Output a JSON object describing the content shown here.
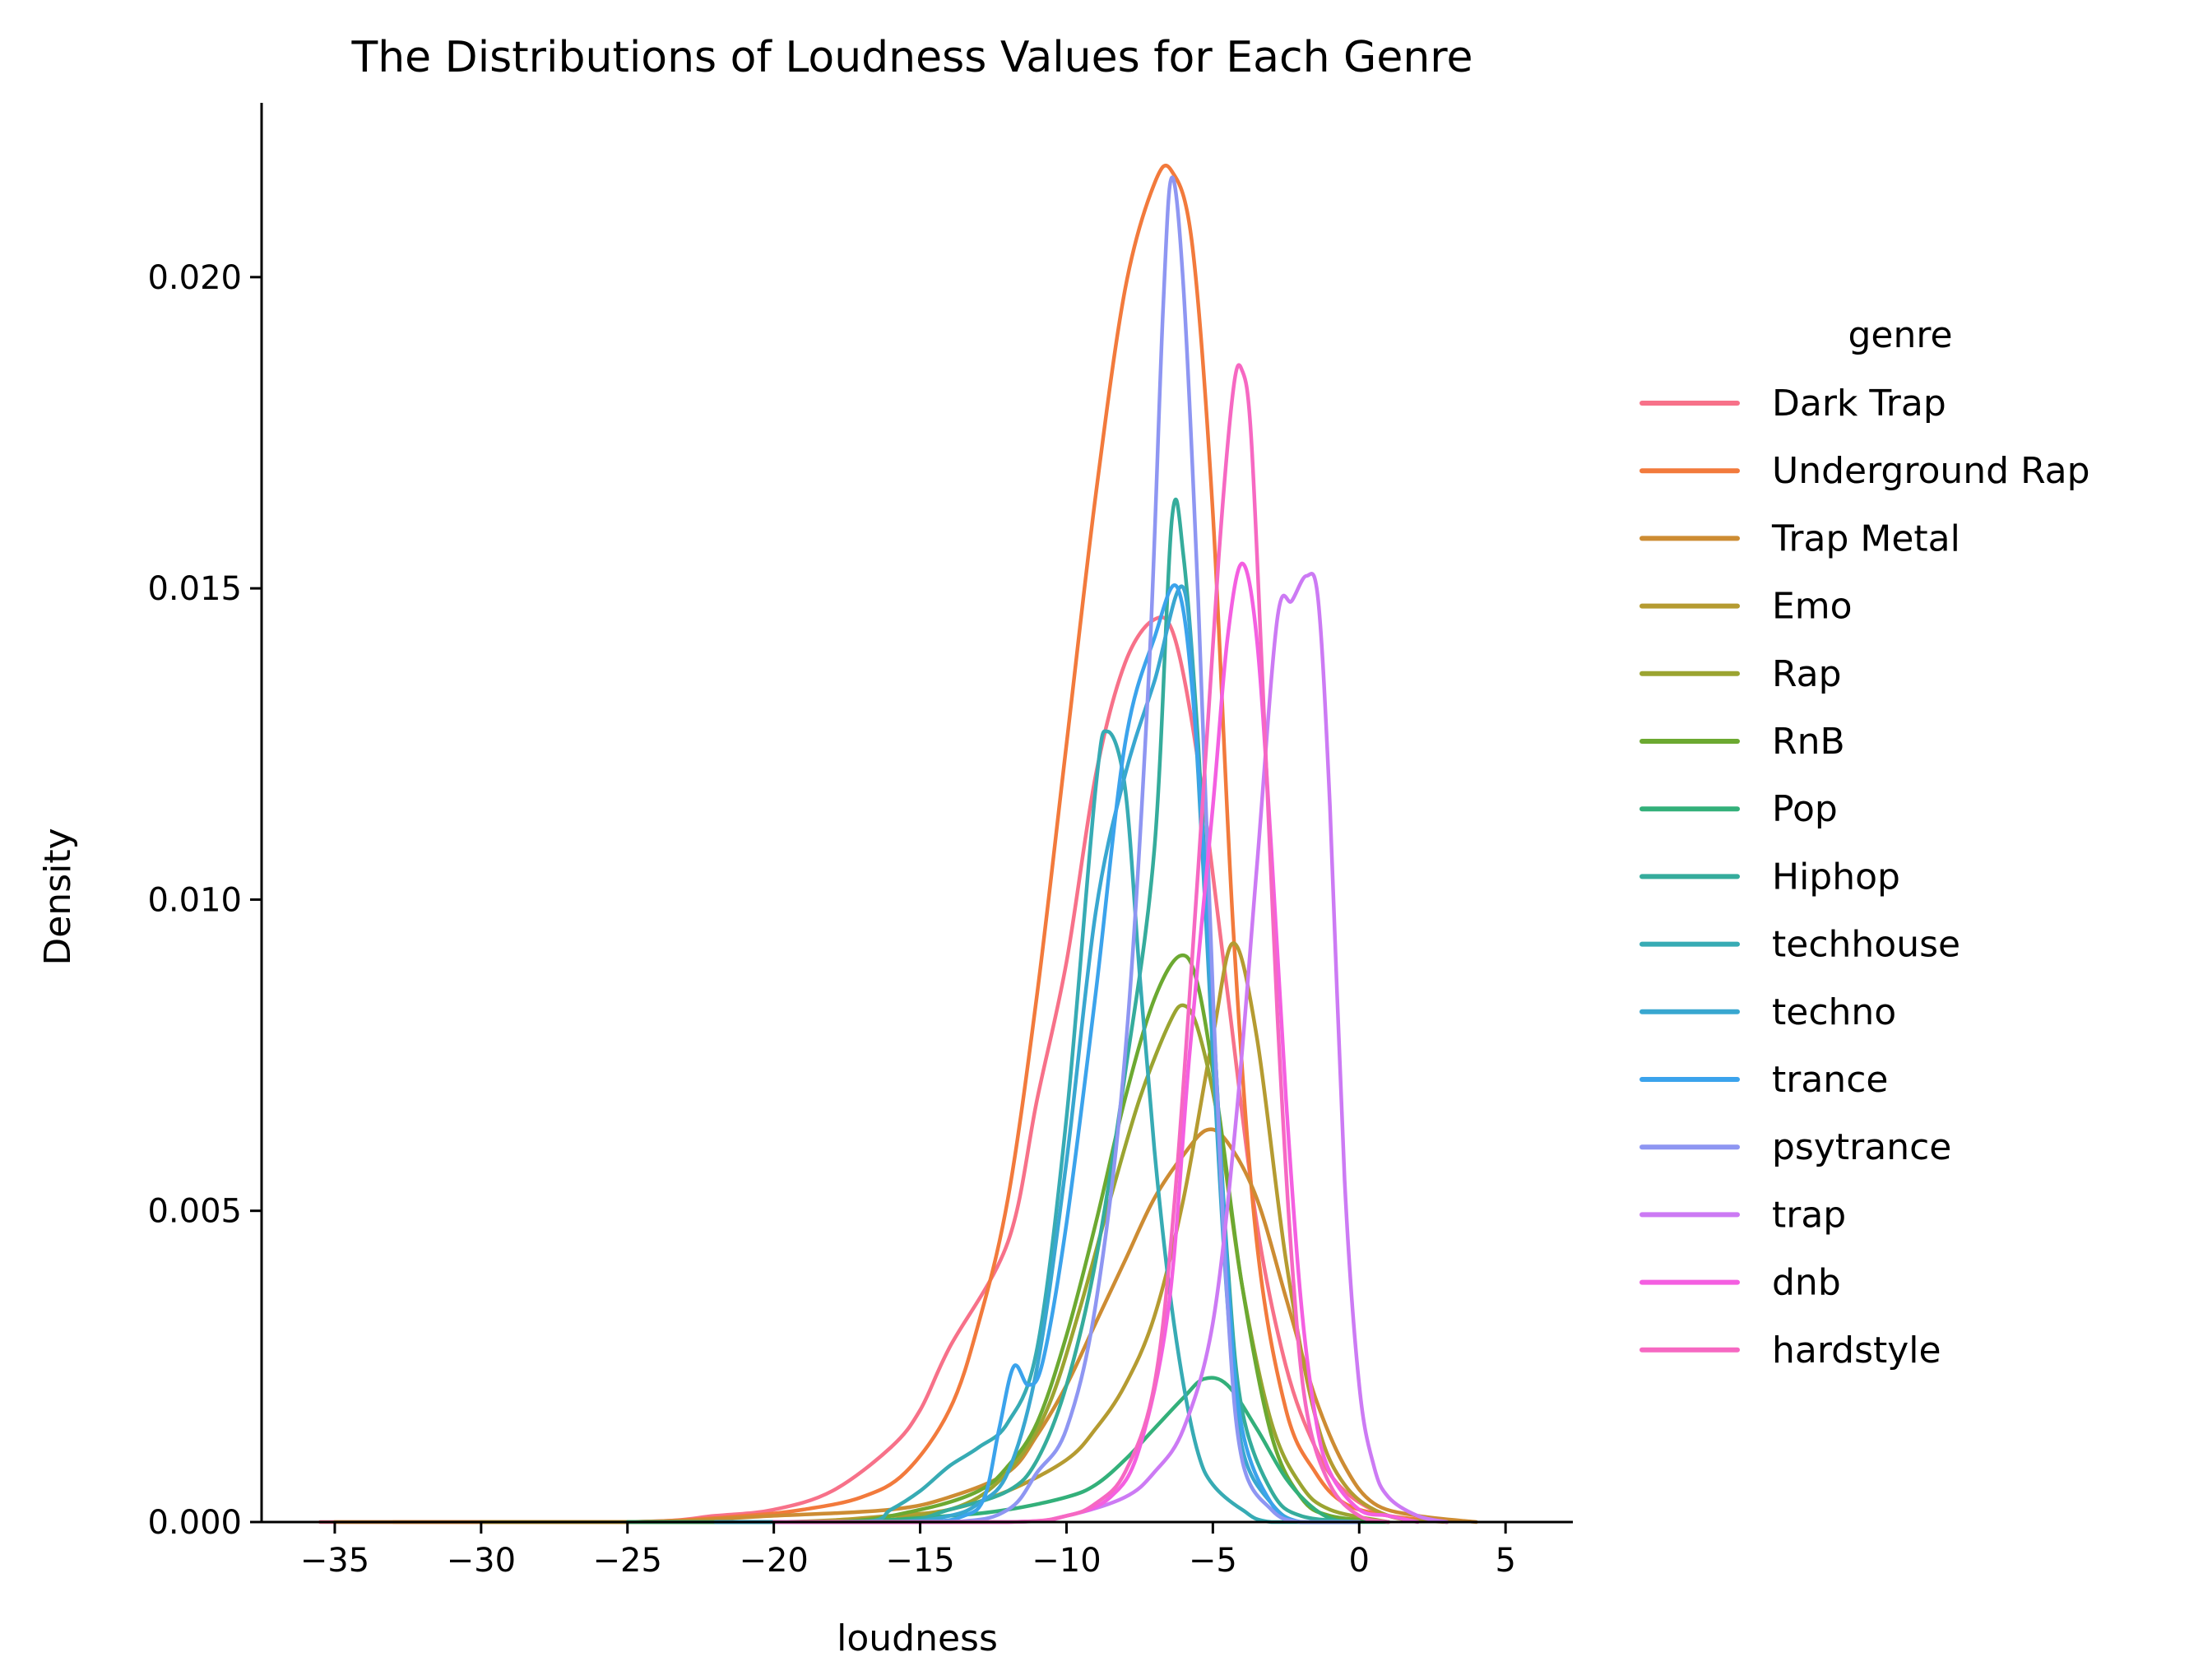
{
  "chart_data": {
    "type": "line",
    "title": "The Distributions of Loudness Values for Each Genre",
    "xlabel": "loudness",
    "ylabel": "Density",
    "xlim": [
      -37.5,
      7.3
    ],
    "ylim": [
      0,
      0.0228
    ],
    "xticks": [
      -35,
      -30,
      -25,
      -20,
      -15,
      -10,
      -5,
      0,
      5
    ],
    "xtick_labels": [
      "−35",
      "−30",
      "−25",
      "−20",
      "−15",
      "−10",
      "−5",
      "0",
      "5"
    ],
    "yticks": [
      0,
      0.005,
      0.01,
      0.015,
      0.02
    ],
    "ytick_labels": [
      "0.000",
      "0.005",
      "0.010",
      "0.015",
      "0.020"
    ],
    "grid": false,
    "legend": {
      "title": "genre",
      "position": "right"
    },
    "series": [
      {
        "name": "Dark Trap",
        "color": "#f77189",
        "points": [
          [
            -35.5,
            0
          ],
          [
            -25,
            0
          ],
          [
            -22,
            0.0001
          ],
          [
            -20,
            0.0002
          ],
          [
            -18,
            0.0005
          ],
          [
            -16,
            0.0012
          ],
          [
            -15,
            0.0018
          ],
          [
            -14,
            0.0028
          ],
          [
            -12,
            0.0045
          ],
          [
            -11,
            0.0068
          ],
          [
            -10,
            0.009
          ],
          [
            -9,
            0.012
          ],
          [
            -8,
            0.0138
          ],
          [
            -7,
            0.0145
          ],
          [
            -6.3,
            0.0142
          ],
          [
            -5.5,
            0.0122
          ],
          [
            -4.5,
            0.0085
          ],
          [
            -3.5,
            0.0048
          ],
          [
            -2.5,
            0.0025
          ],
          [
            -1.5,
            0.0012
          ],
          [
            -0.5,
            0.0005
          ],
          [
            1,
            0.0001
          ],
          [
            3,
            0
          ]
        ]
      },
      {
        "name": "Underground Rap",
        "color": "#f27a3c",
        "points": [
          [
            -33,
            0
          ],
          [
            -25,
            0
          ],
          [
            -21,
            0.0001
          ],
          [
            -19,
            0.0002
          ],
          [
            -17,
            0.0004
          ],
          [
            -15.5,
            0.0008
          ],
          [
            -14,
            0.0018
          ],
          [
            -13,
            0.0032
          ],
          [
            -12,
            0.0052
          ],
          [
            -11,
            0.0085
          ],
          [
            -10,
            0.0125
          ],
          [
            -9,
            0.0165
          ],
          [
            -8,
            0.0198
          ],
          [
            -7,
            0.0215
          ],
          [
            -6.4,
            0.0217
          ],
          [
            -5.7,
            0.0205
          ],
          [
            -5,
            0.0162
          ],
          [
            -4.3,
            0.0095
          ],
          [
            -3.5,
            0.0045
          ],
          [
            -2.5,
            0.0018
          ],
          [
            -1.5,
            0.0008
          ],
          [
            -0.5,
            0.0003
          ],
          [
            1,
            0.0001
          ],
          [
            3,
            0
          ]
        ]
      },
      {
        "name": "Trap Metal",
        "color": "#cd8c33",
        "points": [
          [
            -35,
            0
          ],
          [
            -25,
            0
          ],
          [
            -20,
            0.0001
          ],
          [
            -16,
            0.0002
          ],
          [
            -14,
            0.0004
          ],
          [
            -12,
            0.0008
          ],
          [
            -11,
            0.0014
          ],
          [
            -10,
            0.0022
          ],
          [
            -9,
            0.0032
          ],
          [
            -8,
            0.0042
          ],
          [
            -7,
            0.0052
          ],
          [
            -6,
            0.0059
          ],
          [
            -5.2,
            0.0063
          ],
          [
            -4.5,
            0.0061
          ],
          [
            -3.5,
            0.0052
          ],
          [
            -2.5,
            0.0036
          ],
          [
            -1.5,
            0.002
          ],
          [
            -0.5,
            0.0009
          ],
          [
            0.5,
            0.0003
          ],
          [
            2,
            0.0001
          ],
          [
            4,
            0
          ]
        ]
      },
      {
        "name": "Emo",
        "color": "#b59b31",
        "points": [
          [
            -30,
            0
          ],
          [
            -20,
            0
          ],
          [
            -16,
            0.0001
          ],
          [
            -14,
            0.0002
          ],
          [
            -12,
            0.0005
          ],
          [
            -10,
            0.001
          ],
          [
            -9,
            0.0015
          ],
          [
            -8,
            0.0022
          ],
          [
            -7,
            0.0033
          ],
          [
            -6,
            0.0052
          ],
          [
            -5,
            0.0078
          ],
          [
            -4.3,
            0.0093
          ],
          [
            -3.5,
            0.0078
          ],
          [
            -2.5,
            0.0042
          ],
          [
            -1.5,
            0.0017
          ],
          [
            -0.5,
            0.0006
          ],
          [
            1,
            0.0001
          ],
          [
            3,
            0
          ]
        ]
      },
      {
        "name": "Rap",
        "color": "#9ba431",
        "points": [
          [
            -25,
            0
          ],
          [
            -18,
            0
          ],
          [
            -15,
            0.0001
          ],
          [
            -13,
            0.0004
          ],
          [
            -11.5,
            0.0011
          ],
          [
            -10.5,
            0.002
          ],
          [
            -9.5,
            0.0035
          ],
          [
            -8.5,
            0.0052
          ],
          [
            -7.5,
            0.0068
          ],
          [
            -6.5,
            0.008
          ],
          [
            -6,
            0.0083
          ],
          [
            -5.5,
            0.0079
          ],
          [
            -4.8,
            0.0064
          ],
          [
            -4,
            0.0038
          ],
          [
            -3,
            0.0016
          ],
          [
            -2,
            0.0006
          ],
          [
            -1,
            0.0002
          ],
          [
            1,
            0
          ]
        ]
      },
      {
        "name": "RnB",
        "color": "#6ca931",
        "points": [
          [
            -25,
            0
          ],
          [
            -18,
            0
          ],
          [
            -15,
            0.0002
          ],
          [
            -13,
            0.0005
          ],
          [
            -12,
            0.0009
          ],
          [
            -11,
            0.0016
          ],
          [
            -10,
            0.003
          ],
          [
            -9,
            0.0048
          ],
          [
            -8,
            0.0068
          ],
          [
            -7,
            0.0084
          ],
          [
            -6.1,
            0.0091
          ],
          [
            -5.5,
            0.0086
          ],
          [
            -4.8,
            0.0066
          ],
          [
            -4,
            0.0038
          ],
          [
            -3,
            0.0014
          ],
          [
            -2,
            0.0004
          ],
          [
            -1,
            0.0001
          ],
          [
            1,
            0
          ]
        ]
      },
      {
        "name": "Pop",
        "color": "#33b07a",
        "points": [
          [
            -25,
            0
          ],
          [
            -18,
            0
          ],
          [
            -14,
            0.0001
          ],
          [
            -12,
            0.0002
          ],
          [
            -10,
            0.0004
          ],
          [
            -9,
            0.0006
          ],
          [
            -8,
            0.001
          ],
          [
            -7,
            0.0015
          ],
          [
            -6,
            0.002
          ],
          [
            -5.3,
            0.0023
          ],
          [
            -4.5,
            0.0022
          ],
          [
            -3.5,
            0.0015
          ],
          [
            -2.5,
            0.0007
          ],
          [
            -1.5,
            0.0002
          ],
          [
            -0.5,
            0
          ],
          [
            1,
            0
          ]
        ]
      },
      {
        "name": "Hiphop",
        "color": "#35ac9c",
        "points": [
          [
            -22,
            0
          ],
          [
            -16,
            0
          ],
          [
            -14,
            0.0002
          ],
          [
            -12,
            0.0005
          ],
          [
            -11,
            0.001
          ],
          [
            -10,
            0.0022
          ],
          [
            -9,
            0.0042
          ],
          [
            -8,
            0.0072
          ],
          [
            -7,
            0.0108
          ],
          [
            -6.4,
            0.0161
          ],
          [
            -6,
            0.0155
          ],
          [
            -5.5,
            0.0125
          ],
          [
            -5,
            0.0082
          ],
          [
            -4.5,
            0.0042
          ],
          [
            -4,
            0.0018
          ],
          [
            -3,
            0.0005
          ],
          [
            -2,
            0.0001
          ],
          [
            0,
            0
          ]
        ]
      },
      {
        "name": "techhouse",
        "color": "#37abb4",
        "points": [
          [
            -22,
            0
          ],
          [
            -17,
            0
          ],
          [
            -16,
            0.0002
          ],
          [
            -15,
            0.0005
          ],
          [
            -14,
            0.0009
          ],
          [
            -13,
            0.0012
          ],
          [
            -12,
            0.0016
          ],
          [
            -11,
            0.0028
          ],
          [
            -10,
            0.0065
          ],
          [
            -9,
            0.0118
          ],
          [
            -8.6,
            0.0127
          ],
          [
            -8,
            0.0118
          ],
          [
            -7.5,
            0.0088
          ],
          [
            -7,
            0.006
          ],
          [
            -6.5,
            0.0038
          ],
          [
            -6,
            0.0022
          ],
          [
            -5.5,
            0.0011
          ],
          [
            -5,
            0.0006
          ],
          [
            -4,
            0.0002
          ],
          [
            -3,
            0
          ],
          [
            0,
            0
          ]
        ]
      },
      {
        "name": "techno",
        "color": "#39a7d0",
        "points": [
          [
            -22,
            0
          ],
          [
            -16,
            0
          ],
          [
            -14,
            0.0001
          ],
          [
            -13,
            0.0003
          ],
          [
            -12,
            0.0008
          ],
          [
            -11,
            0.0025
          ],
          [
            -10,
            0.0058
          ],
          [
            -9,
            0.0098
          ],
          [
            -8,
            0.012
          ],
          [
            -7,
            0.0135
          ],
          [
            -6,
            0.015
          ],
          [
            -5.5,
            0.012
          ],
          [
            -5,
            0.0075
          ],
          [
            -4.5,
            0.0035
          ],
          [
            -4,
            0.0012
          ],
          [
            -3,
            0.0003
          ],
          [
            -2,
            0
          ],
          [
            0,
            0
          ]
        ]
      },
      {
        "name": "trance",
        "color": "#3ba3ec",
        "points": [
          [
            -20,
            0
          ],
          [
            -15,
            0
          ],
          [
            -13.5,
            0.0001
          ],
          [
            -12.8,
            0.0004
          ],
          [
            -12.3,
            0.0015
          ],
          [
            -11.8,
            0.0025
          ],
          [
            -11.3,
            0.0022
          ],
          [
            -10.8,
            0.0026
          ],
          [
            -10,
            0.0048
          ],
          [
            -9,
            0.0085
          ],
          [
            -8,
            0.0125
          ],
          [
            -7,
            0.0142
          ],
          [
            -6.2,
            0.015
          ],
          [
            -5.6,
            0.0128
          ],
          [
            -5,
            0.0082
          ],
          [
            -4.5,
            0.004
          ],
          [
            -4,
            0.0015
          ],
          [
            -3,
            0.0003
          ],
          [
            -2,
            0
          ],
          [
            0,
            0
          ]
        ]
      },
      {
        "name": "psytrance",
        "color": "#8e96f2",
        "points": [
          [
            -20,
            0
          ],
          [
            -14,
            0
          ],
          [
            -12,
            0.0002
          ],
          [
            -11,
            0.0008
          ],
          [
            -10,
            0.0015
          ],
          [
            -9,
            0.0035
          ],
          [
            -8,
            0.0075
          ],
          [
            -7.2,
            0.0135
          ],
          [
            -6.7,
            0.0195
          ],
          [
            -6.4,
            0.0216
          ],
          [
            -6,
            0.0198
          ],
          [
            -5.5,
            0.0148
          ],
          [
            -5,
            0.0085
          ],
          [
            -4.5,
            0.0035
          ],
          [
            -4,
            0.001
          ],
          [
            -3,
            0.0002
          ],
          [
            -2,
            0
          ],
          [
            0,
            0
          ]
        ]
      },
      {
        "name": "trap",
        "color": "#cc7af4",
        "points": [
          [
            -20,
            0
          ],
          [
            -12,
            0
          ],
          [
            -10,
            0.0001
          ],
          [
            -8,
            0.0004
          ],
          [
            -7,
            0.0008
          ],
          [
            -6,
            0.0015
          ],
          [
            -5,
            0.0032
          ],
          [
            -4.2,
            0.0065
          ],
          [
            -3.5,
            0.0105
          ],
          [
            -2.8,
            0.0145
          ],
          [
            -2.3,
            0.0148
          ],
          [
            -1.8,
            0.0152
          ],
          [
            -1.4,
            0.0148
          ],
          [
            -1,
            0.0115
          ],
          [
            -0.5,
            0.0055
          ],
          [
            0,
            0.0022
          ],
          [
            0.5,
            0.0009
          ],
          [
            1,
            0.0004
          ],
          [
            2,
            0.0001
          ],
          [
            3,
            0
          ]
        ]
      },
      {
        "name": "dnb",
        "color": "#f45fe1",
        "points": [
          [
            -20,
            0
          ],
          [
            -12,
            0
          ],
          [
            -10,
            0.0001
          ],
          [
            -8.5,
            0.0004
          ],
          [
            -7.5,
            0.0012
          ],
          [
            -6.5,
            0.0035
          ],
          [
            -5.8,
            0.0075
          ],
          [
            -5,
            0.0115
          ],
          [
            -4.5,
            0.0142
          ],
          [
            -4,
            0.0154
          ],
          [
            -3.5,
            0.0142
          ],
          [
            -3,
            0.0108
          ],
          [
            -2.5,
            0.0068
          ],
          [
            -2,
            0.0036
          ],
          [
            -1.5,
            0.0017
          ],
          [
            -1,
            0.0008
          ],
          [
            0,
            0.0002
          ],
          [
            1,
            0.0001
          ],
          [
            2,
            0
          ]
        ]
      },
      {
        "name": "hardstyle",
        "color": "#f668c2",
        "points": [
          [
            -20,
            0
          ],
          [
            -12,
            0
          ],
          [
            -10,
            0.0001
          ],
          [
            -9,
            0.0003
          ],
          [
            -8,
            0.0008
          ],
          [
            -7,
            0.0022
          ],
          [
            -6.3,
            0.0052
          ],
          [
            -5.5,
            0.0105
          ],
          [
            -4.8,
            0.0155
          ],
          [
            -4.3,
            0.0182
          ],
          [
            -4,
            0.0185
          ],
          [
            -3.7,
            0.0175
          ],
          [
            -3.3,
            0.0135
          ],
          [
            -2.8,
            0.0082
          ],
          [
            -2.3,
            0.0042
          ],
          [
            -1.8,
            0.0018
          ],
          [
            -1,
            0.0006
          ],
          [
            0,
            0.0001
          ],
          [
            1,
            0
          ]
        ]
      }
    ]
  }
}
